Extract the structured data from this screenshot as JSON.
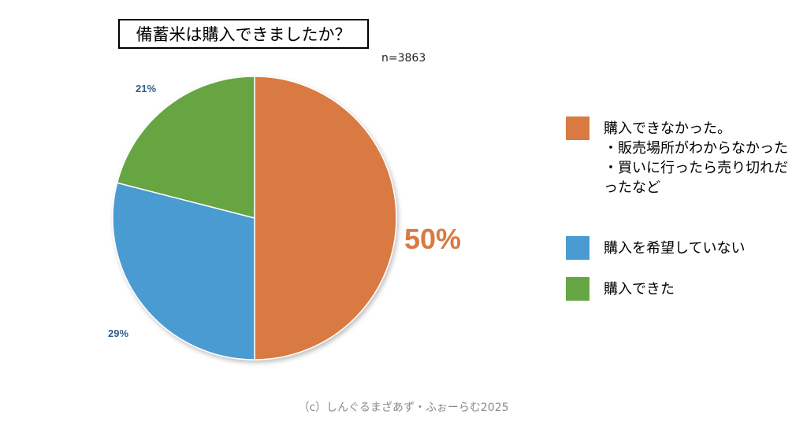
{
  "title": "備蓄米は購入できましたか？",
  "sample_size": "n=3863",
  "footer": "（c）しんぐるまざあず・ふぉーらむ2025",
  "chart_data": {
    "type": "pie",
    "title": "備蓄米は購入できましたか？",
    "slices": [
      {
        "label": "購入できなかった。\n・販売場所がわからなかった\n・買いに行ったら売り切れだったなど",
        "value": 50,
        "display": "50%",
        "color": "#d97a42"
      },
      {
        "label": "購入を希望していない",
        "value": 29,
        "display": "29%",
        "color": "#4a9bd1"
      },
      {
        "label": "購入できた",
        "value": 21,
        "display": "21%",
        "color": "#66a543"
      }
    ],
    "start_angle_deg": 0,
    "direction": "clockwise",
    "legend_position": "right"
  }
}
